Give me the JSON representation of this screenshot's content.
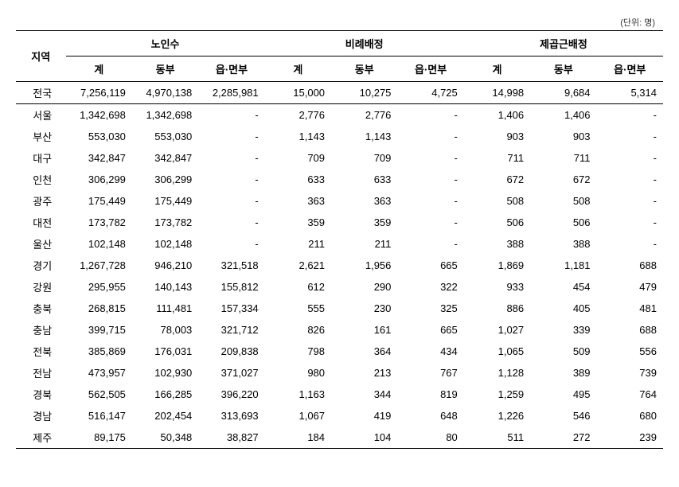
{
  "unit_label": "(단위: 명)",
  "headers": {
    "region": "지역",
    "group1": "노인수",
    "group2": "비례배정",
    "group3": "제곱근배정",
    "sub_total": "계",
    "sub_dong": "동부",
    "sub_eup": "읍·면부"
  },
  "rows": [
    {
      "region": "전국",
      "g1_total": "7,256,119",
      "g1_dong": "4,970,138",
      "g1_eup": "2,285,981",
      "g2_total": "15,000",
      "g2_dong": "10,275",
      "g2_eup": "4,725",
      "g3_total": "14,998",
      "g3_dong": "9,684",
      "g3_eup": "5,314",
      "is_total": true
    },
    {
      "region": "서울",
      "g1_total": "1,342,698",
      "g1_dong": "1,342,698",
      "g1_eup": "-",
      "g2_total": "2,776",
      "g2_dong": "2,776",
      "g2_eup": "-",
      "g3_total": "1,406",
      "g3_dong": "1,406",
      "g3_eup": "-"
    },
    {
      "region": "부산",
      "g1_total": "553,030",
      "g1_dong": "553,030",
      "g1_eup": "-",
      "g2_total": "1,143",
      "g2_dong": "1,143",
      "g2_eup": "-",
      "g3_total": "903",
      "g3_dong": "903",
      "g3_eup": "-"
    },
    {
      "region": "대구",
      "g1_total": "342,847",
      "g1_dong": "342,847",
      "g1_eup": "-",
      "g2_total": "709",
      "g2_dong": "709",
      "g2_eup": "-",
      "g3_total": "711",
      "g3_dong": "711",
      "g3_eup": "-"
    },
    {
      "region": "인천",
      "g1_total": "306,299",
      "g1_dong": "306,299",
      "g1_eup": "-",
      "g2_total": "633",
      "g2_dong": "633",
      "g2_eup": "-",
      "g3_total": "672",
      "g3_dong": "672",
      "g3_eup": "-"
    },
    {
      "region": "광주",
      "g1_total": "175,449",
      "g1_dong": "175,449",
      "g1_eup": "-",
      "g2_total": "363",
      "g2_dong": "363",
      "g2_eup": "-",
      "g3_total": "508",
      "g3_dong": "508",
      "g3_eup": "-"
    },
    {
      "region": "대전",
      "g1_total": "173,782",
      "g1_dong": "173,782",
      "g1_eup": "-",
      "g2_total": "359",
      "g2_dong": "359",
      "g2_eup": "-",
      "g3_total": "506",
      "g3_dong": "506",
      "g3_eup": "-"
    },
    {
      "region": "울산",
      "g1_total": "102,148",
      "g1_dong": "102,148",
      "g1_eup": "-",
      "g2_total": "211",
      "g2_dong": "211",
      "g2_eup": "-",
      "g3_total": "388",
      "g3_dong": "388",
      "g3_eup": "-"
    },
    {
      "region": "경기",
      "g1_total": "1,267,728",
      "g1_dong": "946,210",
      "g1_eup": "321,518",
      "g2_total": "2,621",
      "g2_dong": "1,956",
      "g2_eup": "665",
      "g3_total": "1,869",
      "g3_dong": "1,181",
      "g3_eup": "688"
    },
    {
      "region": "강원",
      "g1_total": "295,955",
      "g1_dong": "140,143",
      "g1_eup": "155,812",
      "g2_total": "612",
      "g2_dong": "290",
      "g2_eup": "322",
      "g3_total": "933",
      "g3_dong": "454",
      "g3_eup": "479"
    },
    {
      "region": "충북",
      "g1_total": "268,815",
      "g1_dong": "111,481",
      "g1_eup": "157,334",
      "g2_total": "555",
      "g2_dong": "230",
      "g2_eup": "325",
      "g3_total": "886",
      "g3_dong": "405",
      "g3_eup": "481"
    },
    {
      "region": "충남",
      "g1_total": "399,715",
      "g1_dong": "78,003",
      "g1_eup": "321,712",
      "g2_total": "826",
      "g2_dong": "161",
      "g2_eup": "665",
      "g3_total": "1,027",
      "g3_dong": "339",
      "g3_eup": "688"
    },
    {
      "region": "전북",
      "g1_total": "385,869",
      "g1_dong": "176,031",
      "g1_eup": "209,838",
      "g2_total": "798",
      "g2_dong": "364",
      "g2_eup": "434",
      "g3_total": "1,065",
      "g3_dong": "509",
      "g3_eup": "556"
    },
    {
      "region": "전남",
      "g1_total": "473,957",
      "g1_dong": "102,930",
      "g1_eup": "371,027",
      "g2_total": "980",
      "g2_dong": "213",
      "g2_eup": "767",
      "g3_total": "1,128",
      "g3_dong": "389",
      "g3_eup": "739"
    },
    {
      "region": "경북",
      "g1_total": "562,505",
      "g1_dong": "166,285",
      "g1_eup": "396,220",
      "g2_total": "1,163",
      "g2_dong": "344",
      "g2_eup": "819",
      "g3_total": "1,259",
      "g3_dong": "495",
      "g3_eup": "764"
    },
    {
      "region": "경남",
      "g1_total": "516,147",
      "g1_dong": "202,454",
      "g1_eup": "313,693",
      "g2_total": "1,067",
      "g2_dong": "419",
      "g2_eup": "648",
      "g3_total": "1,226",
      "g3_dong": "546",
      "g3_eup": "680"
    },
    {
      "region": "제주",
      "g1_total": "89,175",
      "g1_dong": "50,348",
      "g1_eup": "38,827",
      "g2_total": "184",
      "g2_dong": "104",
      "g2_eup": "80",
      "g3_total": "511",
      "g3_dong": "272",
      "g3_eup": "239"
    }
  ]
}
